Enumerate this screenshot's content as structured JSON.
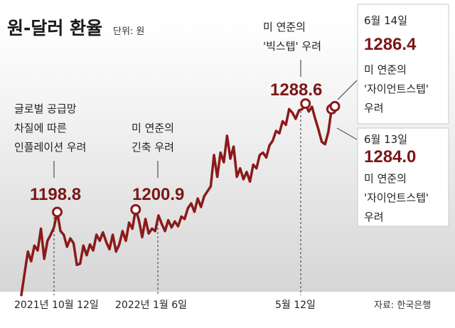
{
  "chart_data": {
    "type": "line",
    "title": "원-달러 환율",
    "unit": "단위: 원",
    "source": "자료: 한국은행",
    "color": "#8b1a1a",
    "x_labels": [
      "2021년 10월 12일",
      "2022년 1월 6일",
      "5월 12일"
    ],
    "series": [
      {
        "values": [
          1130,
          1148,
          1166,
          1158,
          1171,
          1167,
          1185,
          1160,
          1175,
          1180,
          1186,
          1198.8,
          1183,
          1180,
          1170,
          1177,
          1173,
          1155,
          1156,
          1171,
          1163,
          1172,
          1167,
          1180,
          1175,
          1182,
          1174,
          1168,
          1180,
          1166,
          1172,
          1183,
          1175,
          1190,
          1185,
          1200.9,
          1192,
          1178,
          1193,
          1181,
          1185,
          1183,
          1196,
          1189,
          1183,
          1192,
          1186,
          1191,
          1187,
          1195,
          1193,
          1202,
          1206,
          1199,
          1210,
          1203,
          1212,
          1216,
          1220,
          1246,
          1228,
          1248,
          1240,
          1262,
          1243,
          1253,
          1228,
          1235,
          1226,
          1232,
          1224,
          1238,
          1235,
          1246,
          1248,
          1244,
          1254,
          1258,
          1266,
          1264,
          1274,
          1271,
          1284,
          1281,
          1276,
          1283,
          1284,
          1288.6,
          1282,
          1286,
          1276,
          1267,
          1257,
          1255,
          1265,
          1284.0,
          1286.4
        ]
      }
    ],
    "points": [
      {
        "x_index": 11,
        "value": "1198.8",
        "note": [
          "글로벌 공급망",
          "차질에 따른",
          "인플레이션 우려"
        ]
      },
      {
        "x_index": 35,
        "value": "1200.9",
        "note": [
          "미 연준의",
          "긴축 우려"
        ]
      },
      {
        "x_index": 87,
        "value": "1288.6",
        "note": [
          "미 연준의",
          "'빅스텝' 우려"
        ]
      },
      {
        "x_index": 95,
        "value": "1284.0",
        "date": "6월 13일",
        "note": [
          "미 연준의",
          "'자이언트스텝'",
          "우려"
        ]
      },
      {
        "x_index": 96,
        "value": "1286.4",
        "date": "6월 14일",
        "note": [
          "미 연준의",
          "'자이언트스텝'",
          "우려"
        ]
      }
    ]
  }
}
